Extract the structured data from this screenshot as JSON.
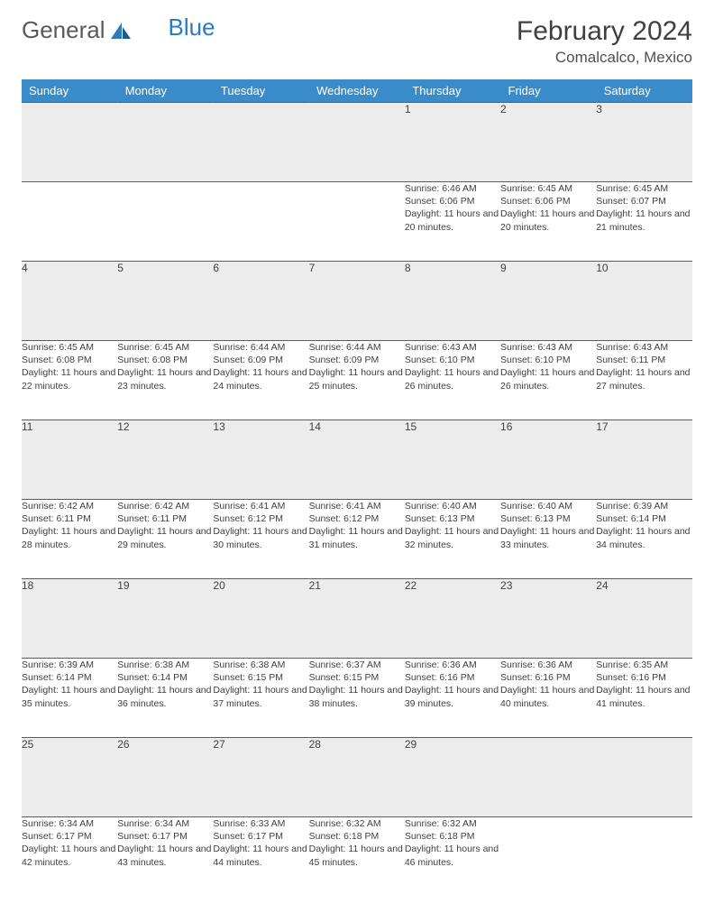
{
  "brand": {
    "part1": "General",
    "part2": "Blue"
  },
  "title": "February 2024",
  "location": "Comalcalco, Mexico",
  "colors": {
    "header_bg": "#3a8bc9",
    "header_text": "#ffffff",
    "row_border": "#2b6aa3",
    "daynum_bg": "#ececec",
    "text": "#404040",
    "brand_gray": "#5a5a5a",
    "brand_blue": "#2b7bbf"
  },
  "weekdays": [
    "Sunday",
    "Monday",
    "Tuesday",
    "Wednesday",
    "Thursday",
    "Friday",
    "Saturday"
  ],
  "weeks": [
    [
      null,
      null,
      null,
      null,
      {
        "n": "1",
        "sr": "6:46 AM",
        "ss": "6:06 PM",
        "dl": "11 hours and 20 minutes."
      },
      {
        "n": "2",
        "sr": "6:45 AM",
        "ss": "6:06 PM",
        "dl": "11 hours and 20 minutes."
      },
      {
        "n": "3",
        "sr": "6:45 AM",
        "ss": "6:07 PM",
        "dl": "11 hours and 21 minutes."
      }
    ],
    [
      {
        "n": "4",
        "sr": "6:45 AM",
        "ss": "6:08 PM",
        "dl": "11 hours and 22 minutes."
      },
      {
        "n": "5",
        "sr": "6:45 AM",
        "ss": "6:08 PM",
        "dl": "11 hours and 23 minutes."
      },
      {
        "n": "6",
        "sr": "6:44 AM",
        "ss": "6:09 PM",
        "dl": "11 hours and 24 minutes."
      },
      {
        "n": "7",
        "sr": "6:44 AM",
        "ss": "6:09 PM",
        "dl": "11 hours and 25 minutes."
      },
      {
        "n": "8",
        "sr": "6:43 AM",
        "ss": "6:10 PM",
        "dl": "11 hours and 26 minutes."
      },
      {
        "n": "9",
        "sr": "6:43 AM",
        "ss": "6:10 PM",
        "dl": "11 hours and 26 minutes."
      },
      {
        "n": "10",
        "sr": "6:43 AM",
        "ss": "6:11 PM",
        "dl": "11 hours and 27 minutes."
      }
    ],
    [
      {
        "n": "11",
        "sr": "6:42 AM",
        "ss": "6:11 PM",
        "dl": "11 hours and 28 minutes."
      },
      {
        "n": "12",
        "sr": "6:42 AM",
        "ss": "6:11 PM",
        "dl": "11 hours and 29 minutes."
      },
      {
        "n": "13",
        "sr": "6:41 AM",
        "ss": "6:12 PM",
        "dl": "11 hours and 30 minutes."
      },
      {
        "n": "14",
        "sr": "6:41 AM",
        "ss": "6:12 PM",
        "dl": "11 hours and 31 minutes."
      },
      {
        "n": "15",
        "sr": "6:40 AM",
        "ss": "6:13 PM",
        "dl": "11 hours and 32 minutes."
      },
      {
        "n": "16",
        "sr": "6:40 AM",
        "ss": "6:13 PM",
        "dl": "11 hours and 33 minutes."
      },
      {
        "n": "17",
        "sr": "6:39 AM",
        "ss": "6:14 PM",
        "dl": "11 hours and 34 minutes."
      }
    ],
    [
      {
        "n": "18",
        "sr": "6:39 AM",
        "ss": "6:14 PM",
        "dl": "11 hours and 35 minutes."
      },
      {
        "n": "19",
        "sr": "6:38 AM",
        "ss": "6:14 PM",
        "dl": "11 hours and 36 minutes."
      },
      {
        "n": "20",
        "sr": "6:38 AM",
        "ss": "6:15 PM",
        "dl": "11 hours and 37 minutes."
      },
      {
        "n": "21",
        "sr": "6:37 AM",
        "ss": "6:15 PM",
        "dl": "11 hours and 38 minutes."
      },
      {
        "n": "22",
        "sr": "6:36 AM",
        "ss": "6:16 PM",
        "dl": "11 hours and 39 minutes."
      },
      {
        "n": "23",
        "sr": "6:36 AM",
        "ss": "6:16 PM",
        "dl": "11 hours and 40 minutes."
      },
      {
        "n": "24",
        "sr": "6:35 AM",
        "ss": "6:16 PM",
        "dl": "11 hours and 41 minutes."
      }
    ],
    [
      {
        "n": "25",
        "sr": "6:34 AM",
        "ss": "6:17 PM",
        "dl": "11 hours and 42 minutes."
      },
      {
        "n": "26",
        "sr": "6:34 AM",
        "ss": "6:17 PM",
        "dl": "11 hours and 43 minutes."
      },
      {
        "n": "27",
        "sr": "6:33 AM",
        "ss": "6:17 PM",
        "dl": "11 hours and 44 minutes."
      },
      {
        "n": "28",
        "sr": "6:32 AM",
        "ss": "6:18 PM",
        "dl": "11 hours and 45 minutes."
      },
      {
        "n": "29",
        "sr": "6:32 AM",
        "ss": "6:18 PM",
        "dl": "11 hours and 46 minutes."
      },
      null,
      null
    ]
  ],
  "labels": {
    "sunrise": "Sunrise: ",
    "sunset": "Sunset: ",
    "daylight": "Daylight: "
  }
}
